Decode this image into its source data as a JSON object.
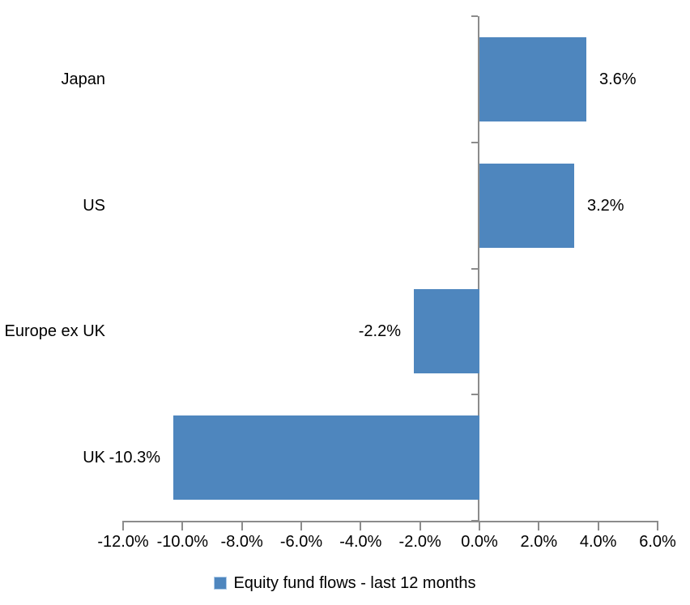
{
  "chart_data": {
    "type": "bar",
    "orientation": "horizontal",
    "title": "",
    "series_name": "Equity fund flows - last 12 months",
    "categories": [
      "Japan",
      "US",
      "Europe ex UK",
      "UK"
    ],
    "values": [
      3.6,
      3.2,
      -2.2,
      -10.3
    ],
    "data_labels": [
      "3.6%",
      "3.2%",
      "-2.2%",
      "-10.3%"
    ],
    "xlim": [
      -12,
      6
    ],
    "x_tick_values": [
      -12,
      -10,
      -8,
      -6,
      -4,
      -2,
      0,
      2,
      4,
      6
    ],
    "x_tick_labels": [
      "-12.0%",
      "-10.0%",
      "-8.0%",
      "-6.0%",
      "-4.0%",
      "-2.0%",
      "0.0%",
      "2.0%",
      "4.0%",
      "6.0%"
    ],
    "grid": "off",
    "legend_position": "bottom",
    "bar_color": "#4E86BE",
    "axis_color": "#8C8C8C",
    "text_color": "#000000"
  },
  "legend": {
    "label": "Equity fund flows - last 12 months"
  }
}
